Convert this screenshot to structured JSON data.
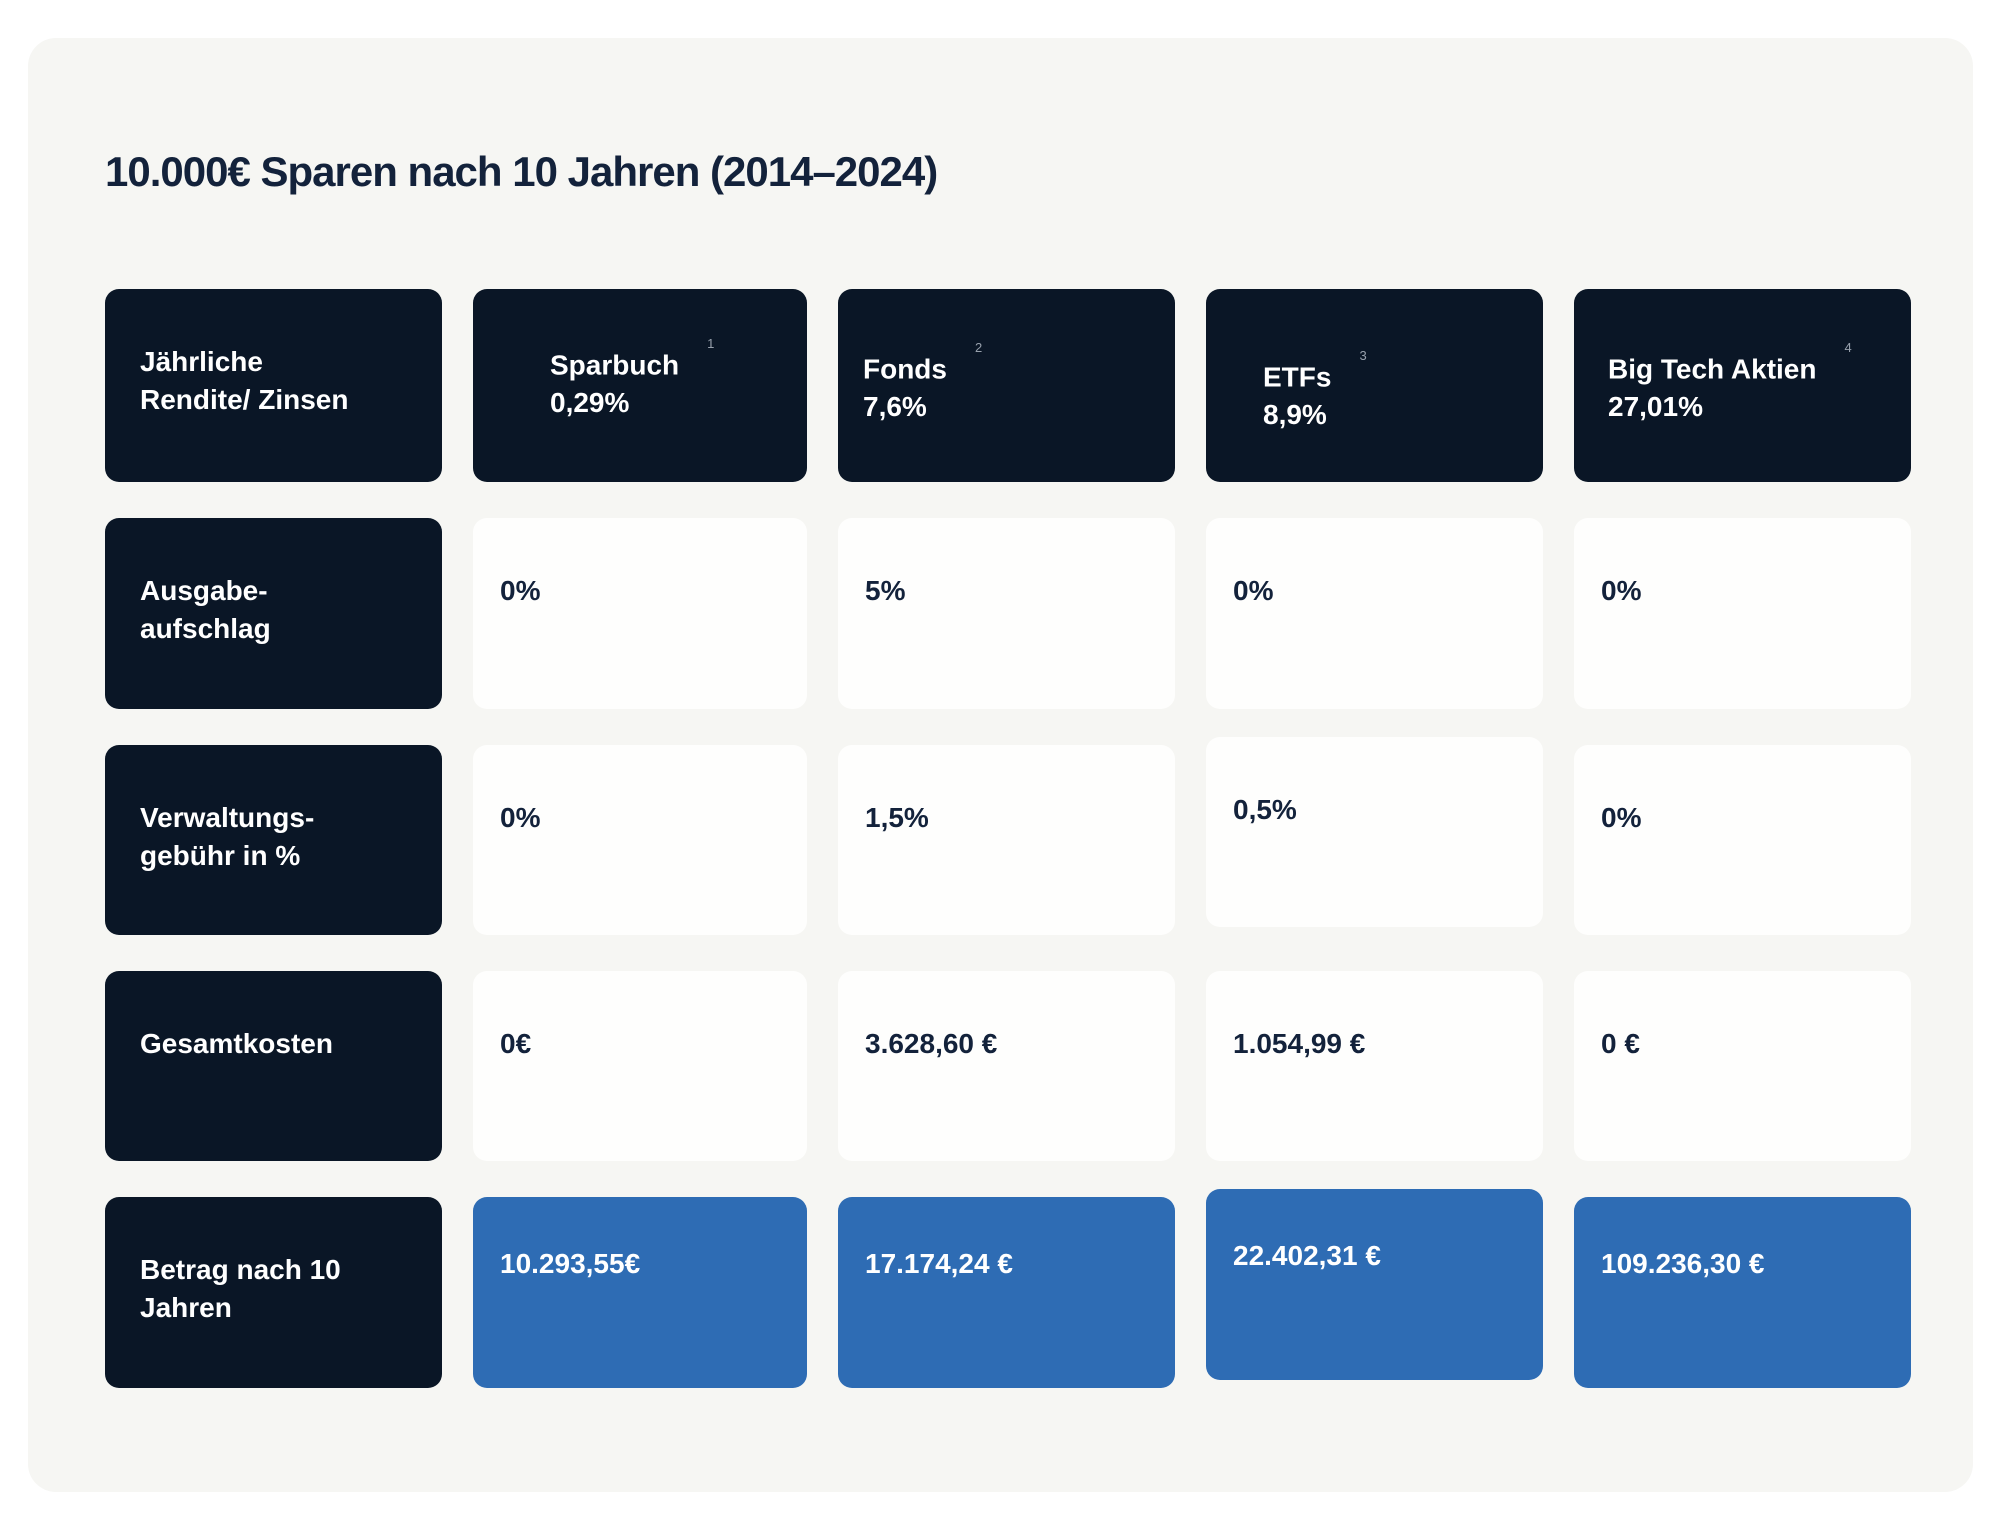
{
  "page": {
    "title": "10.000€ Sparen nach 10 Jahren (2014–2024)"
  },
  "colors": {
    "background": "#FFFFFF",
    "panel": "#F6F6F3",
    "navy": "#0A1626",
    "blue": "#2E6CB4",
    "cell_white": "#FEFEFD",
    "text_dark": "#13223B",
    "text_light": "#FFFFFF",
    "footnote_gray": "#97A0AC"
  },
  "table": {
    "corner": {
      "line1": "Jährliche",
      "line2": "Rendite/ Zinsen"
    },
    "columns": [
      {
        "name": "Sparbuch",
        "rate": "0,29%",
        "footnote": "1"
      },
      {
        "name": "Fonds",
        "rate": "7,6%",
        "footnote": "2"
      },
      {
        "name": "ETFs",
        "rate": "8,9%",
        "footnote": "3"
      },
      {
        "name": "Big Tech Aktien",
        "rate": "27,01%",
        "footnote": "4"
      }
    ],
    "rows": [
      {
        "label": {
          "line1": "Ausgabe-",
          "line2": "aufschlag"
        },
        "values": [
          "0%",
          "5%",
          "0%",
          "0%"
        ]
      },
      {
        "label": {
          "line1": "Verwaltungs-",
          "line2": "gebühr in %"
        },
        "values": [
          "0%",
          "1,5%",
          "0,5%",
          "0%"
        ]
      },
      {
        "label": {
          "line1": "Gesamtkosten",
          "line2": ""
        },
        "values": [
          "0€",
          "3.628,60 €",
          "1.054,99 €",
          "0 €"
        ]
      },
      {
        "label": {
          "line1": "Betrag nach 10",
          "line2": "Jahren"
        },
        "values": [
          "10.293,55€",
          "17.174,24 €",
          "22.402,31 €",
          "109.236,30 €"
        ]
      }
    ]
  },
  "chart_data": {
    "type": "table",
    "title": "10.000€ Sparen nach 10 Jahren (2014–2024)",
    "columns": [
      "Sparbuch",
      "Fonds",
      "ETFs",
      "Big Tech Aktien"
    ],
    "column_annual_returns": [
      "0,29%",
      "7,6%",
      "8,9%",
      "27,01%"
    ],
    "row_headers": [
      "Jährliche Rendite/ Zinsen",
      "Ausgabe-aufschlag",
      "Verwaltungs-gebühr in %",
      "Gesamtkosten",
      "Betrag nach 10 Jahren"
    ],
    "rows": [
      [
        "0,29%",
        "7,6%",
        "8,9%",
        "27,01%"
      ],
      [
        "0%",
        "5%",
        "0%",
        "0%"
      ],
      [
        "0%",
        "1,5%",
        "0,5%",
        "0%"
      ],
      [
        "0€",
        "3.628,60 €",
        "1.054,99 €",
        "0 €"
      ],
      [
        "10.293,55€",
        "17.174,24 €",
        "22.402,31 €",
        "109.236,30 €"
      ]
    ],
    "footnote_markers": [
      "1",
      "2",
      "3",
      "4"
    ]
  }
}
